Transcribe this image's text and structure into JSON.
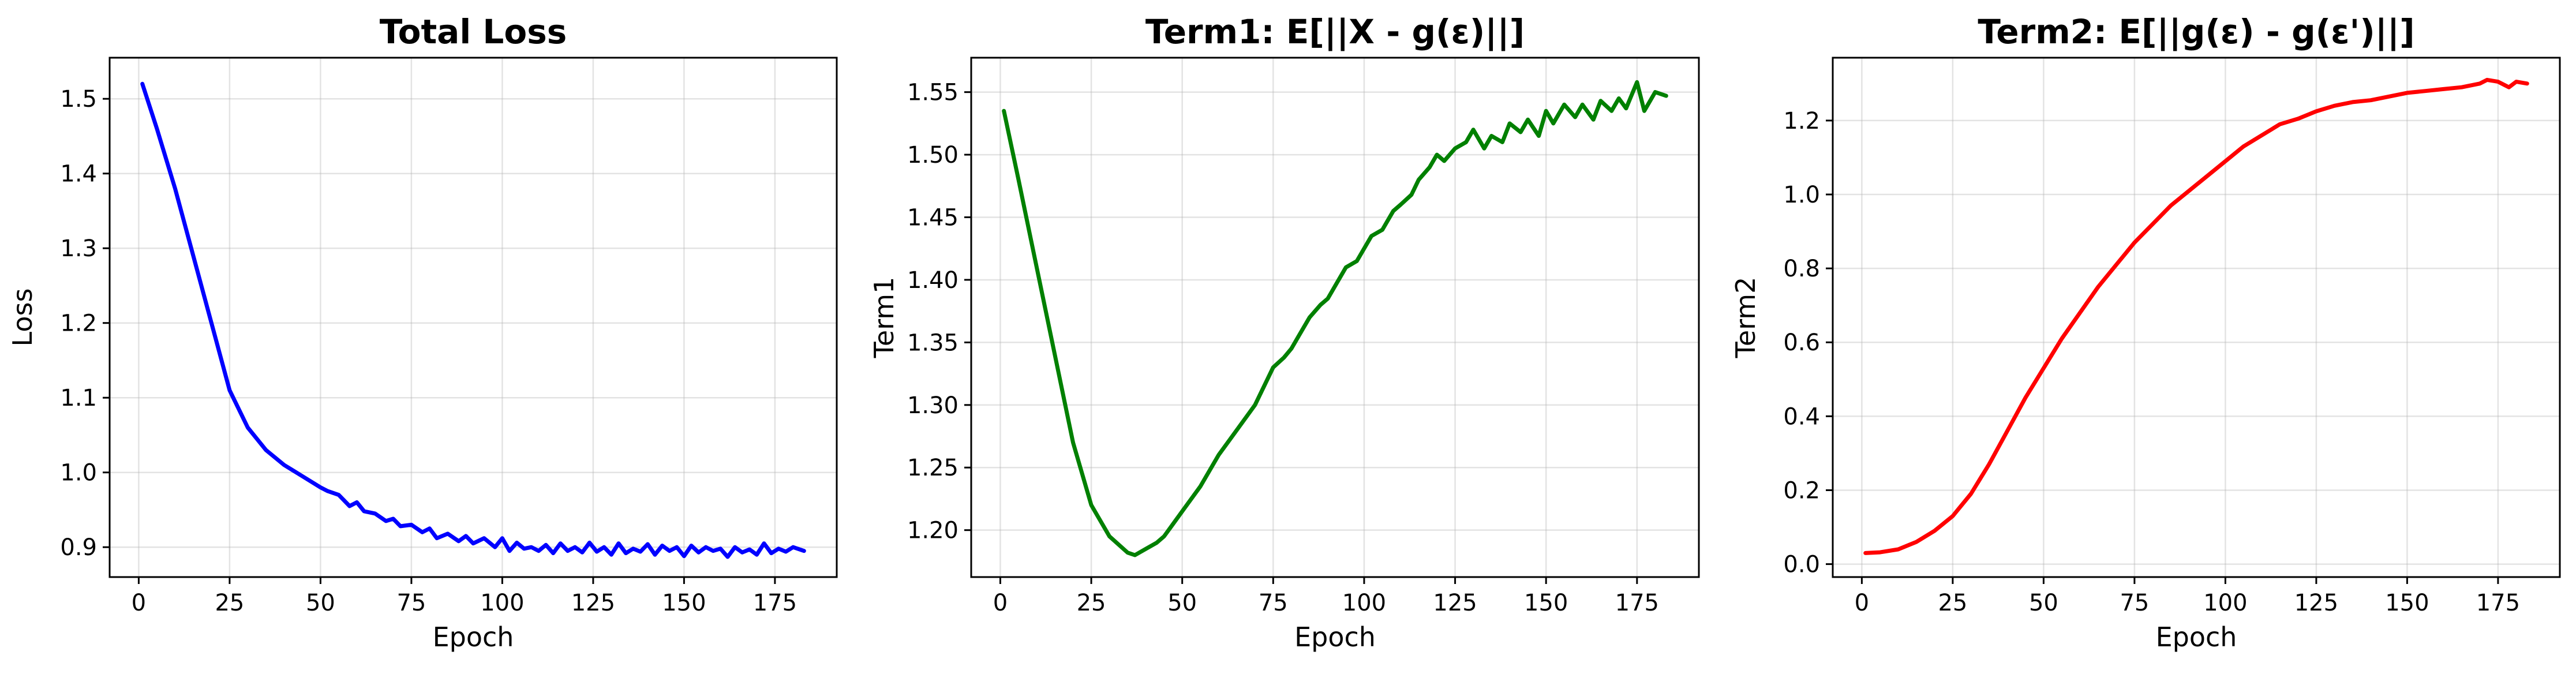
{
  "chart_data": [
    {
      "type": "line",
      "title": "Total Loss",
      "xlabel": "Epoch",
      "ylabel": "Loss",
      "xlim": [
        -8,
        192
      ],
      "ylim": [
        0.86,
        1.555
      ],
      "xticks": [
        0,
        25,
        50,
        75,
        100,
        125,
        150,
        175
      ],
      "yticks": [
        0.9,
        1.0,
        1.1,
        1.2,
        1.3,
        1.4,
        1.5
      ],
      "ytick_decimals": 1,
      "grid": true,
      "color": "#0000ff",
      "series": [
        {
          "x": [
            1,
            5,
            10,
            15,
            20,
            25,
            30,
            35,
            40,
            45,
            50,
            52,
            55,
            58,
            60,
            62,
            65,
            68,
            70,
            72,
            75,
            78,
            80,
            82,
            85,
            88,
            90,
            92,
            95,
            98,
            100,
            102,
            104,
            106,
            108,
            110,
            112,
            114,
            116,
            118,
            120,
            122,
            124,
            126,
            128,
            130,
            132,
            134,
            136,
            138,
            140,
            142,
            144,
            146,
            148,
            150,
            152,
            154,
            156,
            158,
            160,
            162,
            164,
            166,
            168,
            170,
            172,
            174,
            176,
            178,
            180,
            183
          ],
          "y": [
            1.52,
            1.46,
            1.38,
            1.29,
            1.2,
            1.11,
            1.06,
            1.03,
            1.01,
            0.995,
            0.98,
            0.975,
            0.97,
            0.955,
            0.96,
            0.948,
            0.945,
            0.935,
            0.938,
            0.928,
            0.93,
            0.92,
            0.925,
            0.912,
            0.918,
            0.908,
            0.915,
            0.905,
            0.912,
            0.9,
            0.912,
            0.895,
            0.906,
            0.898,
            0.9,
            0.895,
            0.903,
            0.892,
            0.905,
            0.895,
            0.9,
            0.893,
            0.906,
            0.894,
            0.9,
            0.89,
            0.905,
            0.892,
            0.898,
            0.894,
            0.904,
            0.89,
            0.902,
            0.895,
            0.9,
            0.888,
            0.902,
            0.893,
            0.9,
            0.895,
            0.898,
            0.887,
            0.9,
            0.893,
            0.897,
            0.89,
            0.905,
            0.892,
            0.898,
            0.894,
            0.9,
            0.895
          ]
        }
      ]
    },
    {
      "type": "line",
      "title": "Term1: E[||X - g(ε)||]",
      "xlabel": "Epoch",
      "ylabel": "Term1",
      "xlim": [
        -8,
        192
      ],
      "ylim": [
        1.1625,
        1.5775
      ],
      "xticks": [
        0,
        25,
        50,
        75,
        100,
        125,
        150,
        175
      ],
      "yticks": [
        1.2,
        1.25,
        1.3,
        1.35,
        1.4,
        1.45,
        1.5,
        1.55
      ],
      "ytick_decimals": 2,
      "grid": true,
      "color": "#008000",
      "series": [
        {
          "x": [
            1,
            5,
            10,
            15,
            20,
            25,
            30,
            35,
            37,
            40,
            43,
            45,
            50,
            55,
            60,
            65,
            70,
            75,
            78,
            80,
            82,
            85,
            88,
            90,
            92,
            95,
            98,
            100,
            102,
            105,
            108,
            110,
            113,
            115,
            118,
            120,
            122,
            125,
            128,
            130,
            133,
            135,
            138,
            140,
            143,
            145,
            148,
            150,
            152,
            155,
            158,
            160,
            163,
            165,
            168,
            170,
            172,
            175,
            177,
            180,
            183
          ],
          "y": [
            1.535,
            1.48,
            1.41,
            1.34,
            1.27,
            1.22,
            1.195,
            1.182,
            1.18,
            1.185,
            1.19,
            1.195,
            1.215,
            1.235,
            1.26,
            1.28,
            1.3,
            1.33,
            1.338,
            1.345,
            1.355,
            1.37,
            1.38,
            1.385,
            1.395,
            1.41,
            1.415,
            1.425,
            1.435,
            1.44,
            1.455,
            1.46,
            1.468,
            1.48,
            1.49,
            1.5,
            1.495,
            1.505,
            1.51,
            1.52,
            1.505,
            1.515,
            1.51,
            1.525,
            1.518,
            1.528,
            1.515,
            1.535,
            1.525,
            1.54,
            1.53,
            1.54,
            1.528,
            1.543,
            1.535,
            1.545,
            1.537,
            1.558,
            1.535,
            1.55,
            1.547
          ]
        }
      ]
    },
    {
      "type": "line",
      "title": "Term2: E[||g(ε) - g(ε')||]",
      "xlabel": "Epoch",
      "ylabel": "Term2",
      "xlim": [
        -8,
        192
      ],
      "ylim": [
        -0.035,
        1.37
      ],
      "xticks": [
        0,
        25,
        50,
        75,
        100,
        125,
        150,
        175
      ],
      "yticks": [
        0.0,
        0.2,
        0.4,
        0.6,
        0.8,
        1.0,
        1.2
      ],
      "ytick_decimals": 1,
      "grid": true,
      "color": "#ff0000",
      "series": [
        {
          "x": [
            1,
            5,
            10,
            15,
            20,
            25,
            30,
            35,
            40,
            45,
            50,
            55,
            60,
            65,
            70,
            75,
            80,
            85,
            90,
            95,
            100,
            105,
            110,
            115,
            120,
            125,
            130,
            135,
            140,
            145,
            150,
            155,
            160,
            165,
            170,
            172,
            175,
            178,
            180,
            183
          ],
          "y": [
            0.03,
            0.032,
            0.04,
            0.06,
            0.09,
            0.13,
            0.19,
            0.27,
            0.36,
            0.45,
            0.53,
            0.61,
            0.68,
            0.75,
            0.81,
            0.87,
            0.92,
            0.97,
            1.01,
            1.05,
            1.09,
            1.13,
            1.16,
            1.19,
            1.205,
            1.225,
            1.24,
            1.25,
            1.255,
            1.265,
            1.275,
            1.28,
            1.285,
            1.29,
            1.3,
            1.31,
            1.305,
            1.29,
            1.305,
            1.3
          ]
        }
      ]
    }
  ]
}
